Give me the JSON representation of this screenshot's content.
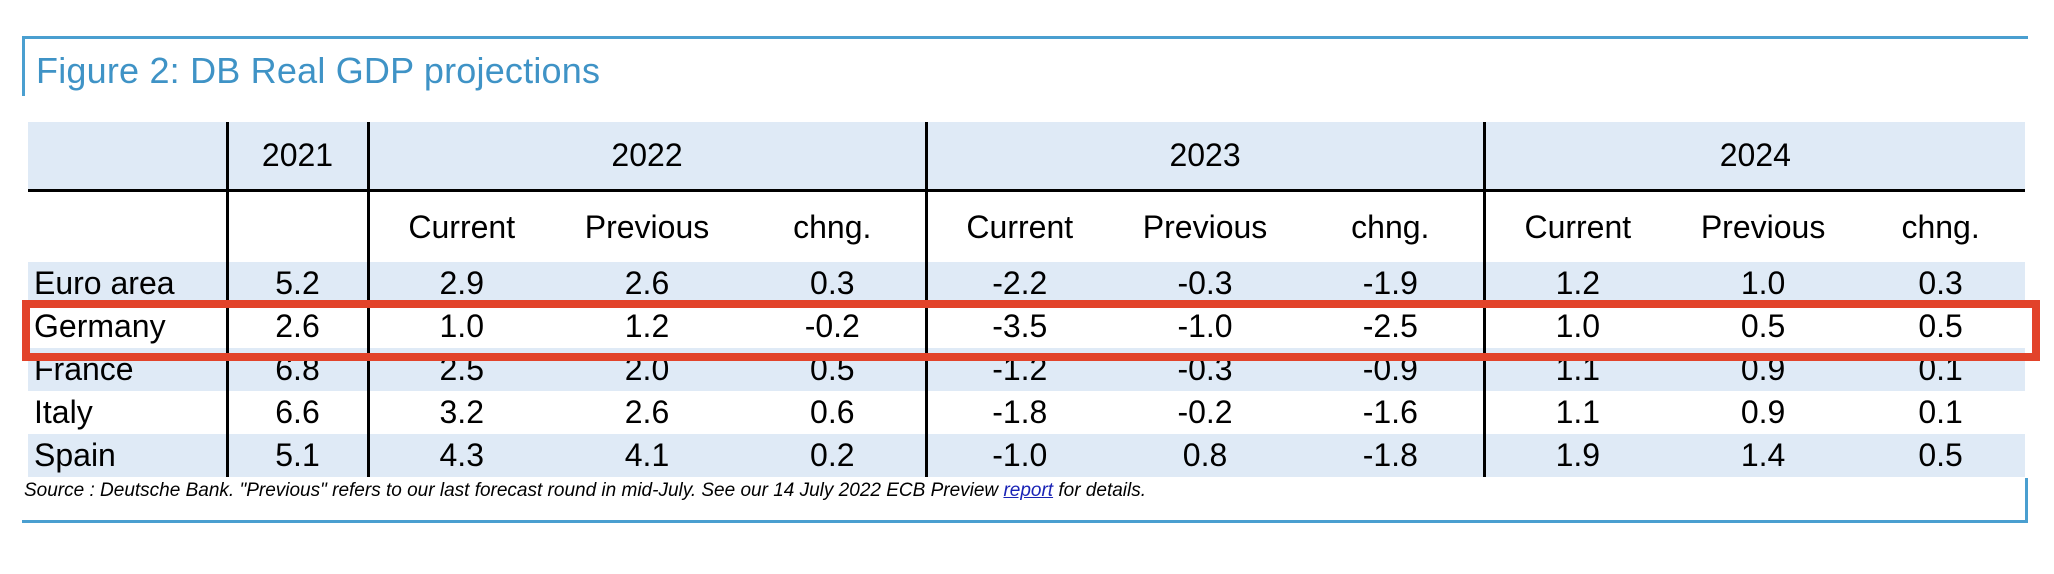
{
  "figure": {
    "title": "Figure 2: DB Real GDP projections"
  },
  "table": {
    "years": [
      "2021",
      "2022",
      "2023",
      "2024"
    ],
    "sub_headers": [
      "Current",
      "Previous",
      "chng."
    ],
    "rows": [
      {
        "country": "Euro area",
        "values": [
          "5.2",
          "2.9",
          "2.6",
          "0.3",
          "-2.2",
          "-0.3",
          "-1.9",
          "1.2",
          "1.0",
          "0.3"
        ]
      },
      {
        "country": "Germany",
        "values": [
          "2.6",
          "1.0",
          "1.2",
          "-0.2",
          "-3.5",
          "-1.0",
          "-2.5",
          "1.0",
          "0.5",
          "0.5"
        ]
      },
      {
        "country": "France",
        "values": [
          "6.8",
          "2.5",
          "2.0",
          "0.5",
          "-1.2",
          "-0.3",
          "-0.9",
          "1.1",
          "0.9",
          "0.1"
        ]
      },
      {
        "country": "Italy",
        "values": [
          "6.6",
          "3.2",
          "2.6",
          "0.6",
          "-1.8",
          "-0.2",
          "-1.6",
          "1.1",
          "0.9",
          "0.1"
        ]
      },
      {
        "country": "Spain",
        "values": [
          "5.1",
          "4.3",
          "4.1",
          "0.2",
          "-1.0",
          "0.8",
          "-1.8",
          "1.9",
          "1.4",
          "0.5"
        ]
      }
    ],
    "highlighted_row": "Germany"
  },
  "source": {
    "text_before": "Source : Deutsche Bank. \"Previous\" refers to our last forecast round in mid-July. See our 14 July 2022 ECB Preview ",
    "link_text": "report",
    "text_after": " for details."
  },
  "colors": {
    "title": "#3f93c6",
    "frame": "#4a9fd0",
    "band": "#dfeaf6",
    "highlight": "#e2432a",
    "link": "#1a23b5"
  }
}
